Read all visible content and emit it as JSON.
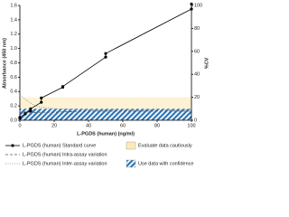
{
  "chart_data": {
    "type": "line",
    "xlabel": "L-PGDS (human) (ng/ml)",
    "ylabel": "Absorbance (450 nm)",
    "y2label": "%CV",
    "xlim": [
      0,
      100
    ],
    "xticks": [
      0,
      20,
      40,
      60,
      80,
      100
    ],
    "ylim": [
      0,
      1.6
    ],
    "yticks": [
      {
        "value": 0,
        "label": "0.0"
      },
      {
        "value": 0.2,
        "label": "0.2"
      },
      {
        "value": 0.4,
        "label": "0.4"
      },
      {
        "value": 0.6,
        "label": "0.6"
      },
      {
        "value": 0.8,
        "label": "0.8"
      },
      {
        "value": 1.0,
        "label": "1.0"
      },
      {
        "value": 1.2,
        "label": "1.2"
      },
      {
        "value": 1.4,
        "label": "1.4"
      },
      {
        "value": 1.6,
        "label": "1.6"
      }
    ],
    "y2lim": [
      0,
      100
    ],
    "y2ticks": [
      0,
      20,
      40,
      60,
      80,
      100
    ],
    "bands": [
      {
        "name": "Evaluate data cautiously",
        "range": [
          10,
          20
        ],
        "color": "#fde9b8",
        "hatch": false
      },
      {
        "name": "Use data with confidence",
        "range": [
          0,
          10
        ],
        "color": "#2e75b6",
        "hatch": true
      }
    ],
    "series": [
      {
        "name": "L-PGDS (human) Standard curve",
        "color": "#000000",
        "style": "solid",
        "marker": true,
        "x": [
          0,
          0,
          3.13,
          3.13,
          6.25,
          6.25,
          12.5,
          12.5,
          25,
          25,
          50,
          50,
          100,
          100
        ],
        "values": [
          0.03,
          0.04,
          0.09,
          0.1,
          0.13,
          0.16,
          0.25,
          0.31,
          0.46,
          0.47,
          0.88,
          0.93,
          1.55,
          1.62
        ]
      },
      {
        "name": "L-PGDS (human) Intra-assay variation",
        "color": "#555555",
        "style": "dashed",
        "marker": false,
        "axis": "y2",
        "x": [
          0,
          10,
          20,
          40,
          60,
          80,
          100
        ],
        "values": [
          6,
          7,
          7,
          8,
          8,
          8,
          8
        ]
      },
      {
        "name": "L-PGDS (human) Inter-assay variation",
        "color": "#888888",
        "style": "dotted",
        "marker": false,
        "axis": "y2",
        "x": [
          0,
          5,
          10,
          20,
          40,
          60,
          80,
          100
        ],
        "values": [
          22,
          16,
          12,
          10,
          9,
          9,
          9,
          9
        ]
      }
    ]
  }
}
